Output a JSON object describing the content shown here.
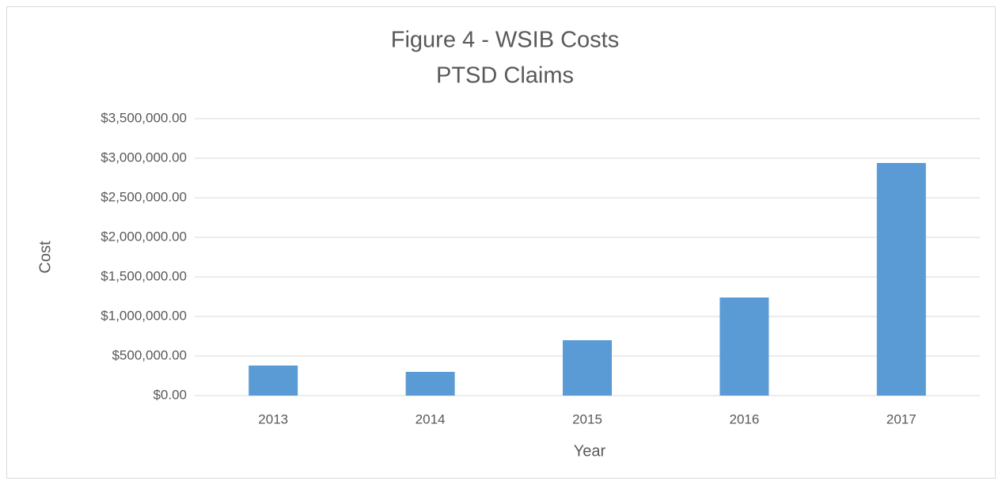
{
  "chart_data": {
    "type": "bar",
    "title": "Figure 4 - WSIB Costs",
    "subtitle": "PTSD Claims",
    "x_label": "Year",
    "y_label": "Cost",
    "categories": [
      "2013",
      "2014",
      "2015",
      "2016",
      "2017"
    ],
    "values": [
      380000,
      300000,
      700000,
      1240000,
      2940000
    ],
    "color": "#5b9bd5",
    "ylim": [
      0,
      3500000
    ],
    "yticks": [
      {
        "value": 0,
        "label": "$0.00"
      },
      {
        "value": 500000,
        "label": "$500,000.00"
      },
      {
        "value": 1000000,
        "label": "$1,000,000.00"
      },
      {
        "value": 1500000,
        "label": "$1,500,000.00"
      },
      {
        "value": 2000000,
        "label": "$2,000,000.00"
      },
      {
        "value": 2500000,
        "label": "$2,500,000.00"
      },
      {
        "value": 3000000,
        "label": "$3,000,000.00"
      },
      {
        "value": 3500000,
        "label": "$3,500,000.00"
      }
    ],
    "grid": true
  }
}
